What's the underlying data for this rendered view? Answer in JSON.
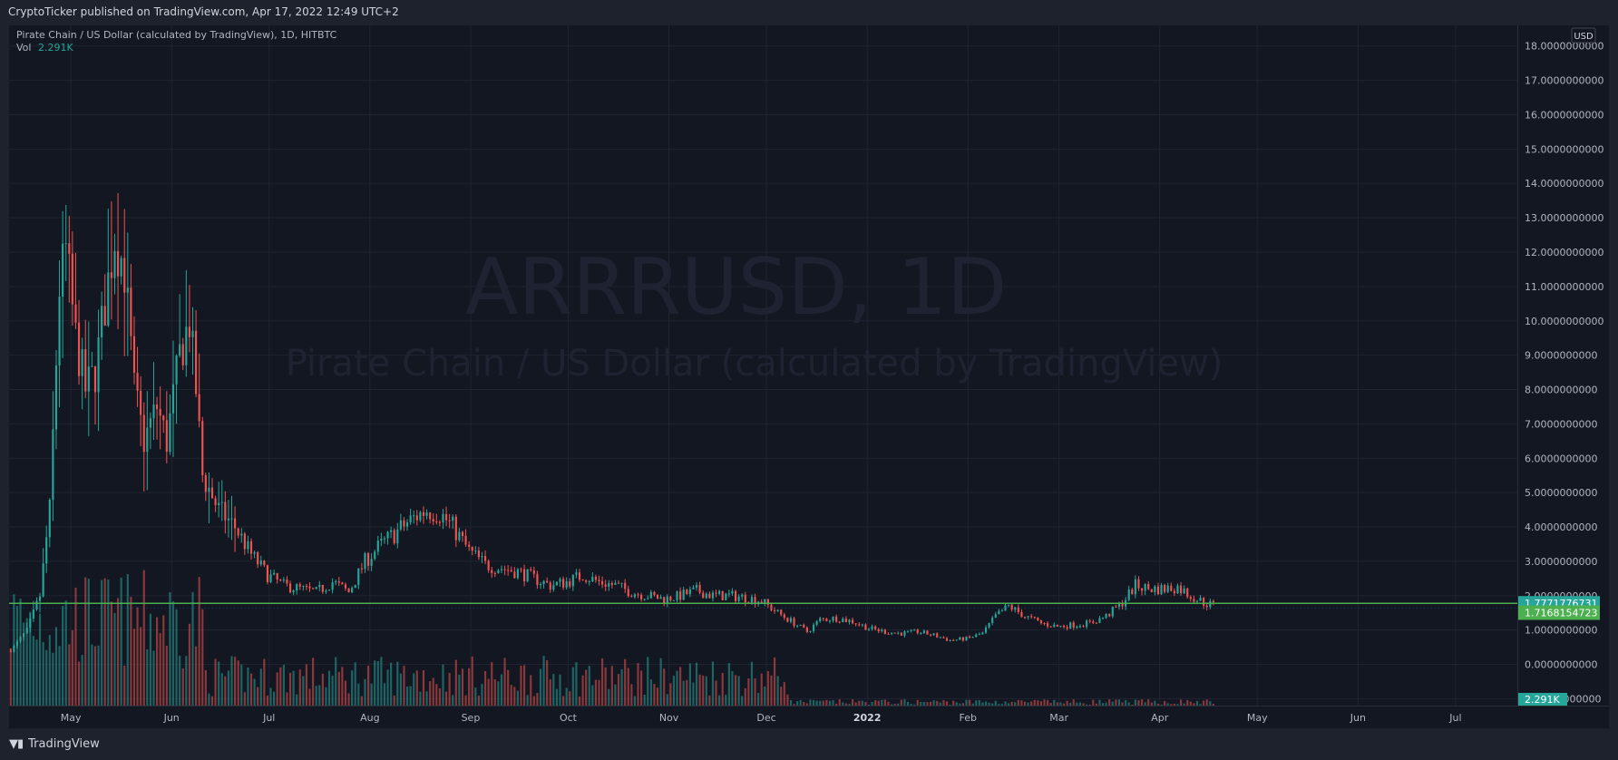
{
  "header": {
    "published": "CryptoTicker published on TradingView.com, Apr 17, 2022 12:49 UTC+2"
  },
  "legend": {
    "symbol_line": "Pirate Chain / US Dollar (calculated by TradingView), 1D, HITBTC",
    "vol_label": "Vol",
    "vol_value": "2.291K"
  },
  "watermark": {
    "ticker": "ARRRUSD, 1D",
    "name": "Pirate Chain / US Dollar (calculated by TradingView)"
  },
  "footer": {
    "brand_label": "TradingView",
    "logo_icon": "tradingview-logo-icon"
  },
  "colors": {
    "up": "#26a69a",
    "down": "#ef5350",
    "hline": "#4caf50",
    "last_label": "#26a69a",
    "line_label": "#4caf50"
  },
  "chart_data": {
    "type": "candlestick",
    "currency": "USD",
    "y_axis": {
      "min": -1.2,
      "max": 18.6,
      "ticks": [
        {
          "value": 18,
          "label": "18.0000000000"
        },
        {
          "value": 17,
          "label": "17.0000000000"
        },
        {
          "value": 16,
          "label": "16.0000000000"
        },
        {
          "value": 15,
          "label": "15.0000000000"
        },
        {
          "value": 14,
          "label": "14.0000000000"
        },
        {
          "value": 13,
          "label": "13.0000000000"
        },
        {
          "value": 12,
          "label": "12.0000000000"
        },
        {
          "value": 11,
          "label": "11.0000000000"
        },
        {
          "value": 10,
          "label": "10.0000000000"
        },
        {
          "value": 9,
          "label": "9.0000000000"
        },
        {
          "value": 8,
          "label": "8.0000000000"
        },
        {
          "value": 7,
          "label": "7.0000000000"
        },
        {
          "value": 6,
          "label": "6.0000000000"
        },
        {
          "value": 5,
          "label": "5.0000000000"
        },
        {
          "value": 4,
          "label": "4.0000000000"
        },
        {
          "value": 3,
          "label": "3.0000000000"
        },
        {
          "value": 2,
          "label": "2.0000000000"
        },
        {
          "value": 1,
          "label": "1.0000000000"
        },
        {
          "value": 0,
          "label": "0.0000000000"
        },
        {
          "value": -1,
          "label": "-1.0000000000"
        }
      ]
    },
    "x_axis": {
      "start": "2021-04-12",
      "end": "2022-07-20",
      "ticks": [
        {
          "date": "2021-05-01",
          "label": "May",
          "bold": false
        },
        {
          "date": "2021-06-01",
          "label": "Jun",
          "bold": false
        },
        {
          "date": "2021-07-01",
          "label": "Jul",
          "bold": false
        },
        {
          "date": "2021-08-01",
          "label": "Aug",
          "bold": false
        },
        {
          "date": "2021-09-01",
          "label": "Sep",
          "bold": false
        },
        {
          "date": "2021-10-01",
          "label": "Oct",
          "bold": false
        },
        {
          "date": "2021-11-01",
          "label": "Nov",
          "bold": false
        },
        {
          "date": "2021-12-01",
          "label": "Dec",
          "bold": false
        },
        {
          "date": "2022-01-01",
          "label": "2022",
          "bold": true
        },
        {
          "date": "2022-02-01",
          "label": "Feb",
          "bold": false
        },
        {
          "date": "2022-03-01",
          "label": "Mar",
          "bold": false
        },
        {
          "date": "2022-04-01",
          "label": "Apr",
          "bold": false
        },
        {
          "date": "2022-05-01",
          "label": "May",
          "bold": false
        },
        {
          "date": "2022-06-01",
          "label": "Jun",
          "bold": false
        },
        {
          "date": "2022-07-01",
          "label": "Jul",
          "bold": false
        }
      ]
    },
    "price_path": [
      [
        "2021-04-12",
        0.4
      ],
      [
        "2021-04-17",
        1.0
      ],
      [
        "2021-04-21",
        2.0
      ],
      [
        "2021-04-24",
        4.5
      ],
      [
        "2021-04-27",
        11.0
      ],
      [
        "2021-04-29",
        12.0
      ],
      [
        "2021-05-02",
        9.5
      ],
      [
        "2021-05-05",
        8.0
      ],
      [
        "2021-05-08",
        8.5
      ],
      [
        "2021-05-11",
        10.5
      ],
      [
        "2021-05-14",
        12.5
      ],
      [
        "2021-05-17",
        11.5
      ],
      [
        "2021-05-20",
        8.0
      ],
      [
        "2021-05-23",
        6.5
      ],
      [
        "2021-05-27",
        7.5
      ],
      [
        "2021-05-30",
        6.5
      ],
      [
        "2021-06-03",
        9.0
      ],
      [
        "2021-06-06",
        10.0
      ],
      [
        "2021-06-08",
        8.0
      ],
      [
        "2021-06-10",
        5.5
      ],
      [
        "2021-06-15",
        4.5
      ],
      [
        "2021-06-20",
        4.0
      ],
      [
        "2021-06-25",
        3.2
      ],
      [
        "2021-06-30",
        2.6
      ],
      [
        "2021-07-05",
        2.3
      ],
      [
        "2021-07-10",
        2.2
      ],
      [
        "2021-07-15",
        2.1
      ],
      [
        "2021-07-20",
        2.4
      ],
      [
        "2021-07-25",
        2.1
      ],
      [
        "2021-07-30",
        3.0
      ],
      [
        "2021-08-03",
        3.4
      ],
      [
        "2021-08-08",
        3.8
      ],
      [
        "2021-08-13",
        4.2
      ],
      [
        "2021-08-18",
        4.5
      ],
      [
        "2021-08-22",
        4.4
      ],
      [
        "2021-08-26",
        4.0
      ],
      [
        "2021-08-31",
        3.3
      ],
      [
        "2021-09-05",
        2.9
      ],
      [
        "2021-09-10",
        2.8
      ],
      [
        "2021-09-15",
        2.7
      ],
      [
        "2021-09-20",
        2.5
      ],
      [
        "2021-09-25",
        2.3
      ],
      [
        "2021-09-30",
        2.4
      ],
      [
        "2021-10-05",
        2.6
      ],
      [
        "2021-10-10",
        2.4
      ],
      [
        "2021-10-15",
        2.3
      ],
      [
        "2021-10-20",
        2.1
      ],
      [
        "2021-10-25",
        2.0
      ],
      [
        "2021-10-30",
        1.9
      ],
      [
        "2021-11-04",
        2.0
      ],
      [
        "2021-11-09",
        2.15
      ],
      [
        "2021-11-14",
        2.0
      ],
      [
        "2021-11-19",
        2.0
      ],
      [
        "2021-11-24",
        1.95
      ],
      [
        "2021-11-29",
        1.85
      ],
      [
        "2021-12-04",
        1.5
      ],
      [
        "2021-12-09",
        1.2
      ],
      [
        "2021-12-13",
        0.95
      ],
      [
        "2021-12-17",
        1.3
      ],
      [
        "2021-12-22",
        1.35
      ],
      [
        "2021-12-27",
        1.25
      ],
      [
        "2022-01-01",
        1.05
      ],
      [
        "2022-01-06",
        0.95
      ],
      [
        "2022-01-11",
        0.9
      ],
      [
        "2022-01-16",
        0.95
      ],
      [
        "2022-01-21",
        0.85
      ],
      [
        "2022-01-26",
        0.7
      ],
      [
        "2022-01-31",
        0.75
      ],
      [
        "2022-02-05",
        0.9
      ],
      [
        "2022-02-09",
        1.4
      ],
      [
        "2022-02-13",
        1.7
      ],
      [
        "2022-02-18",
        1.4
      ],
      [
        "2022-02-23",
        1.2
      ],
      [
        "2022-02-28",
        1.1
      ],
      [
        "2022-03-05",
        1.15
      ],
      [
        "2022-03-10",
        1.2
      ],
      [
        "2022-03-15",
        1.4
      ],
      [
        "2022-03-20",
        1.8
      ],
      [
        "2022-03-24",
        2.3
      ],
      [
        "2022-03-28",
        2.2
      ],
      [
        "2022-04-02",
        2.2
      ],
      [
        "2022-04-06",
        2.25
      ],
      [
        "2022-04-10",
        2.0
      ],
      [
        "2022-04-14",
        1.8
      ],
      [
        "2022-04-17",
        1.72
      ]
    ],
    "horizontal_line": {
      "value": 1.7771776731,
      "label": "1.7771776731"
    },
    "last_price": {
      "value": 1.7168154723,
      "label": "1.7168154723"
    },
    "volume_label": "2.291K",
    "legend": "top-left",
    "grid": true
  }
}
